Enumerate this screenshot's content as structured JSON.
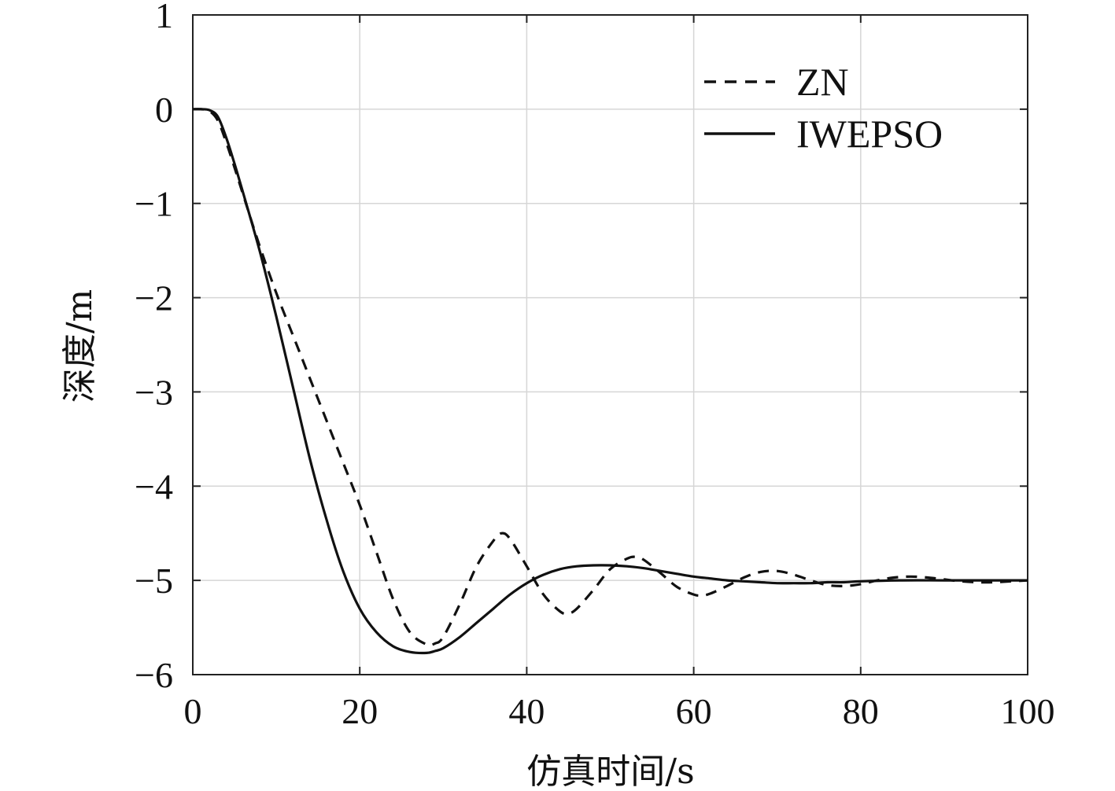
{
  "chart_data": {
    "type": "line",
    "title": "",
    "xlabel": "仿真时间/s",
    "ylabel": "深度/m",
    "xlim": [
      0,
      100
    ],
    "ylim": [
      -6,
      1
    ],
    "xticks": [
      0,
      20,
      40,
      60,
      80,
      100
    ],
    "yticks": [
      1,
      0,
      -1,
      -2,
      -3,
      -4,
      -5,
      -6
    ],
    "xtick_labels": [
      "0",
      "20",
      "40",
      "60",
      "80",
      "100"
    ],
    "ytick_labels": [
      "1",
      "0",
      "−1",
      "−2",
      "−3",
      "−4",
      "−5",
      "−6"
    ],
    "grid": true,
    "legend_position": "top-right",
    "series": [
      {
        "name": "ZN",
        "style": "dashed",
        "color": "#111111",
        "x": [
          0,
          1,
          2,
          3,
          4,
          5,
          6,
          8,
          10,
          12,
          14,
          16,
          18,
          20,
          22,
          24,
          26,
          28,
          29,
          30,
          32,
          34,
          36,
          37,
          38,
          40,
          42,
          44,
          45,
          46,
          48,
          50,
          52,
          53,
          54,
          56,
          58,
          60,
          61,
          62,
          64,
          66,
          68,
          70,
          72,
          74,
          76,
          78,
          80,
          82,
          84,
          86,
          88,
          90,
          92,
          94,
          96,
          98,
          100
        ],
        "y": [
          0,
          0,
          -0.02,
          -0.12,
          -0.35,
          -0.62,
          -0.9,
          -1.45,
          -1.95,
          -2.4,
          -2.85,
          -3.3,
          -3.75,
          -4.2,
          -4.7,
          -5.2,
          -5.55,
          -5.68,
          -5.67,
          -5.6,
          -5.25,
          -4.85,
          -4.58,
          -4.5,
          -4.56,
          -4.85,
          -5.15,
          -5.33,
          -5.35,
          -5.3,
          -5.1,
          -4.88,
          -4.77,
          -4.75,
          -4.78,
          -4.92,
          -5.07,
          -5.15,
          -5.16,
          -5.14,
          -5.06,
          -4.97,
          -4.91,
          -4.9,
          -4.94,
          -5.0,
          -5.05,
          -5.06,
          -5.04,
          -5.0,
          -4.97,
          -4.96,
          -4.97,
          -4.99,
          -5.01,
          -5.02,
          -5.02,
          -5.01,
          -5.0
        ]
      },
      {
        "name": "IWEPSO",
        "style": "solid",
        "color": "#111111",
        "x": [
          0,
          1,
          2,
          3,
          4,
          5,
          6,
          8,
          10,
          12,
          14,
          16,
          18,
          20,
          22,
          24,
          26,
          28,
          29,
          30,
          32,
          34,
          36,
          38,
          40,
          42,
          44,
          46,
          48,
          50,
          52,
          54,
          56,
          58,
          60,
          62,
          64,
          66,
          68,
          70,
          72,
          74,
          76,
          78,
          80,
          85,
          90,
          95,
          100
        ],
        "y": [
          0,
          0,
          -0.01,
          -0.08,
          -0.3,
          -0.58,
          -0.88,
          -1.5,
          -2.2,
          -2.95,
          -3.7,
          -4.35,
          -4.9,
          -5.3,
          -5.55,
          -5.7,
          -5.76,
          -5.77,
          -5.75,
          -5.72,
          -5.6,
          -5.45,
          -5.3,
          -5.15,
          -5.03,
          -4.94,
          -4.88,
          -4.85,
          -4.84,
          -4.84,
          -4.85,
          -4.87,
          -4.9,
          -4.93,
          -4.96,
          -4.98,
          -5.0,
          -5.01,
          -5.02,
          -5.03,
          -5.03,
          -5.03,
          -5.02,
          -5.02,
          -5.01,
          -5.0,
          -5.0,
          -5.0,
          -5.0
        ]
      }
    ]
  }
}
